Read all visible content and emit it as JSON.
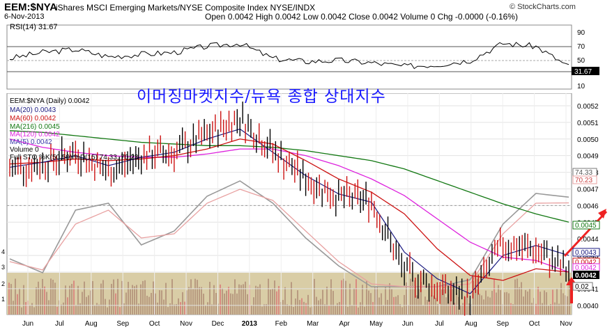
{
  "header": {
    "ticker": "EEM:$NYA",
    "description": "iShares MSCI Emerging Markets/NYSE Composite Index  NYSE/INDX",
    "date": "6-Nov-2013",
    "ohlc": "Open 0.0042  High 0.0042  Low 0.0042  Close 0.0042  Volume 0  Chg -0.0000 (-0.16%)",
    "credit": "© StockCharts.com"
  },
  "rsi": {
    "label": "RSI(14) 31.67",
    "value_tag": "31.67",
    "levels": [
      "90",
      "70",
      "50",
      "30",
      "10"
    ]
  },
  "title_korean": "이머징마켓지수/뉴욕 종합 상대지수",
  "legend": {
    "main": "EEM:$NYA (Daily) 0.0042",
    "ma20": "MA(20) 0.0043",
    "ma60": "MA(60) 0.0042",
    "ma216": "MA(216) 0.0045",
    "ma120": "MA(120) 0.0042",
    "ma5": "MA(5) 0.0042",
    "volume": "Volume 0",
    "sto": "Full STO %K(50,50) %D(15) 74.33, 70.23"
  },
  "right_tags": {
    "sto_k": "74.33",
    "sto_d": "70.23",
    "ma216": "0.0045",
    "ma20": "0.0043",
    "ma60": "0.0042",
    "ma120": "0.0042",
    "close": "0.0042",
    "vol": "0.02"
  },
  "colors": {
    "price": "#000000",
    "ma20": "#1a1a80",
    "ma60": "#cc1111",
    "ma216": "#117711",
    "ma120": "#dd22dd",
    "ma5": "#3a3aaa",
    "sto_k": "#999999",
    "sto_d": "#e8a0a0",
    "volume": "#b89a80",
    "volume_band": "#d9cda6",
    "korean_title": "#1a1aff",
    "arrow": "#ee2222"
  },
  "chart_data": {
    "type": "line",
    "x_ticks": [
      "Jun",
      "Jul",
      "Aug",
      "Sep",
      "Oct",
      "Nov",
      "Dec",
      "2013",
      "Feb",
      "Mar",
      "Apr",
      "May",
      "Jun",
      "Jul",
      "Aug",
      "Sep",
      "Oct",
      "Nov"
    ],
    "y_ticks": [
      "0.0052",
      "0.0051",
      "0.0050",
      "0.0049",
      "0.0048",
      "0.0047",
      "0.0046",
      "0.0045",
      "0.0044",
      "0.0043",
      "0.0042",
      "0.0041",
      "0.0040"
    ],
    "ylim": [
      0.00397,
      0.00525
    ],
    "price_x": [
      0,
      1,
      2,
      3,
      4,
      5,
      6,
      7,
      8,
      9,
      10,
      11,
      12,
      13,
      14,
      15,
      16,
      17
    ],
    "series": [
      {
        "name": "EEM:$NYA",
        "values": [
          0.00482,
          0.00485,
          0.00492,
          0.0048,
          0.0049,
          0.00492,
          0.00502,
          0.00513,
          0.00493,
          0.00476,
          0.00465,
          0.00463,
          0.0042,
          0.0041,
          0.00405,
          0.00437,
          0.00433,
          0.0042
        ]
      },
      {
        "name": "MA(20)",
        "values": [
          0.00483,
          0.00486,
          0.0049,
          0.00484,
          0.00489,
          0.00492,
          0.005,
          0.00506,
          0.00492,
          0.00478,
          0.00467,
          0.00462,
          0.00432,
          0.00416,
          0.00407,
          0.0043,
          0.00436,
          0.0043
        ]
      },
      {
        "name": "MA(60)",
        "values": [
          0.00485,
          0.00486,
          0.00488,
          0.00487,
          0.00488,
          0.0049,
          0.00494,
          0.005,
          0.00497,
          0.00487,
          0.00476,
          0.00468,
          0.00455,
          0.00434,
          0.00418,
          0.00415,
          0.00422,
          0.0042
        ]
      },
      {
        "name": "MA(120)",
        "values": [
          0.005,
          0.00495,
          0.00492,
          0.0049,
          0.00489,
          0.00489,
          0.00491,
          0.00494,
          0.00494,
          0.0049,
          0.00484,
          0.00476,
          0.00466,
          0.00452,
          0.00438,
          0.00429,
          0.00427,
          0.0042
        ]
      },
      {
        "name": "MA(216)",
        "values": [
          0.00505,
          0.00504,
          0.00502,
          0.005,
          0.00498,
          0.00497,
          0.00496,
          0.00496,
          0.00495,
          0.00493,
          0.0049,
          0.00487,
          0.00482,
          0.00475,
          0.00468,
          0.00461,
          0.00455,
          0.0045
        ]
      }
    ],
    "stochastic": {
      "k": [
        30,
        20,
        65,
        70,
        40,
        50,
        75,
        86,
        70,
        45,
        25,
        10,
        10,
        10,
        15,
        55,
        77,
        74.33
      ],
      "d": [
        28,
        22,
        55,
        65,
        45,
        48,
        70,
        80,
        72,
        50,
        28,
        12,
        10,
        10,
        12,
        48,
        70,
        70.23
      ]
    },
    "rsi_values": [
      45,
      55,
      60,
      48,
      52,
      55,
      65,
      70,
      45,
      40,
      42,
      38,
      32,
      35,
      42,
      70,
      65,
      31.67
    ]
  }
}
